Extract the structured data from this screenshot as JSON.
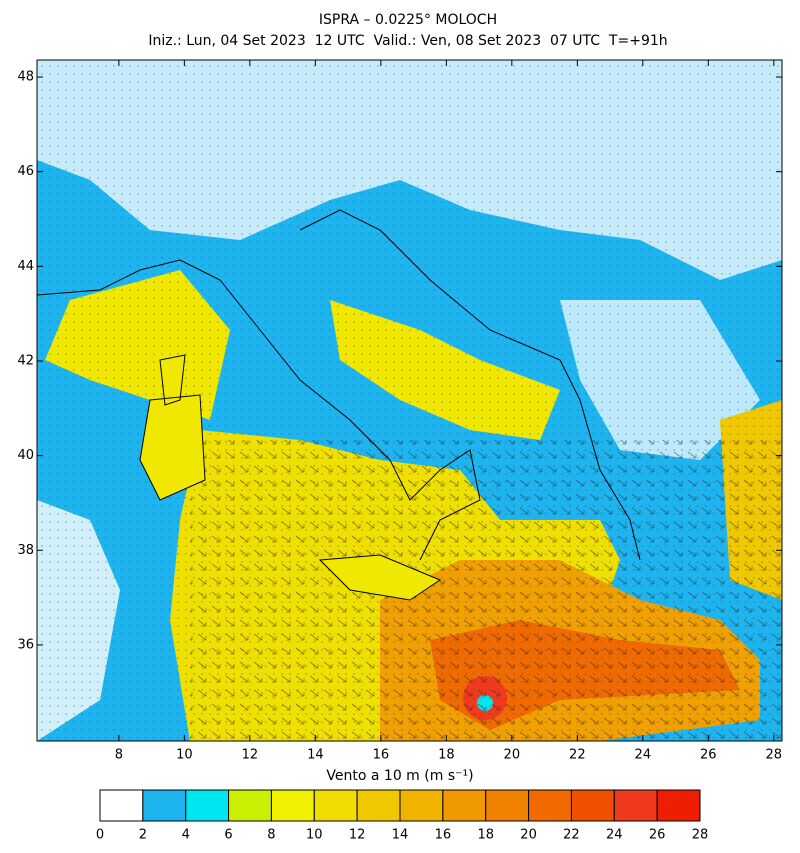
{
  "map": {
    "title": "ISPRA – 0.0225° MOLOCH",
    "subtitle": "Iniz.: Lun, 04 Set 2023  12 UTC  Valid.: Ven, 08 Set 2023  07 UTC  T=+91h",
    "xlim": [
      5.5,
      28.25
    ],
    "ylim": [
      33.97,
      48.36
    ],
    "xticks": [
      8,
      10,
      12,
      14,
      16,
      18,
      20,
      22,
      24,
      26,
      28
    ],
    "yticks": [
      36,
      38,
      40,
      42,
      44,
      46,
      48
    ],
    "colorbar": {
      "label": "Vento a 10 m (m s⁻¹)",
      "levels": [
        0,
        2,
        4,
        6,
        8,
        10,
        12,
        14,
        16,
        18,
        20,
        22,
        24,
        26,
        28
      ],
      "colors": [
        "#ffffff",
        "#1eb4f0",
        "#00e6f0",
        "#c8f000",
        "#f0f000",
        "#f0dc00",
        "#f0c800",
        "#f0b400",
        "#f09a00",
        "#f08200",
        "#f06a00",
        "#f05000",
        "#f03a1e",
        "#f01e00"
      ]
    }
  }
}
